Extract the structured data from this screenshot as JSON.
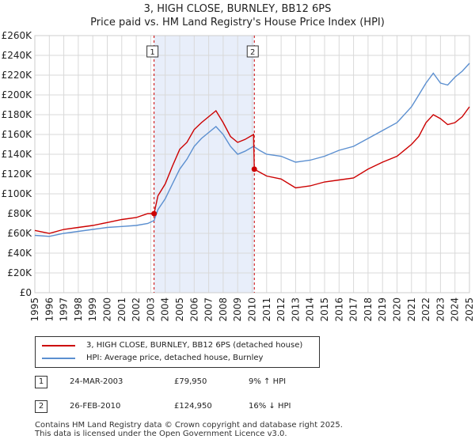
{
  "title_line1": "3, HIGH CLOSE, BURNLEY, BB12 6PS",
  "title_line2": "Price paid vs. HM Land Registry's House Price Index (HPI)",
  "colors": {
    "property": "#cc0000",
    "hpi": "#5b8fd0",
    "shade": "#e8eefa",
    "grid": "#d9d9d9"
  },
  "legend": {
    "property_label": "3, HIGH CLOSE, BURNLEY, BB12 6PS (detached house)",
    "hpi_label": "HPI: Average price, detached house, Burnley"
  },
  "sales": [
    {
      "id": "1",
      "date": "24-MAR-2003",
      "price": "£79,950",
      "hpi_delta": "9% ↑ HPI",
      "year": 2003.23,
      "value": 79950
    },
    {
      "id": "2",
      "date": "26-FEB-2010",
      "price": "£124,950",
      "hpi_delta": "16% ↓ HPI",
      "year": 2010.15,
      "value": 124950
    }
  ],
  "footer_line1": "Contains HM Land Registry data © Crown copyright and database right 2025.",
  "footer_line2": "This data is licensed under the Open Government Licence v3.0.",
  "chart_data": {
    "type": "line",
    "title": "Price paid vs. HM Land Registry's House Price Index (HPI)",
    "xlabel": "",
    "ylabel": "",
    "xlim": [
      1995,
      2025
    ],
    "ylim": [
      0,
      260000
    ],
    "x_ticks": [
      1995,
      1996,
      1997,
      1998,
      1999,
      2000,
      2001,
      2002,
      2003,
      2004,
      2005,
      2006,
      2007,
      2008,
      2009,
      2010,
      2011,
      2012,
      2013,
      2014,
      2015,
      2016,
      2017,
      2018,
      2019,
      2020,
      2021,
      2022,
      2023,
      2024,
      2025
    ],
    "y_ticks": [
      0,
      20000,
      40000,
      60000,
      80000,
      100000,
      120000,
      140000,
      160000,
      180000,
      200000,
      220000,
      240000,
      260000
    ],
    "y_tick_labels": [
      "£0",
      "£20K",
      "£40K",
      "£60K",
      "£80K",
      "£100K",
      "£120K",
      "£140K",
      "£160K",
      "£180K",
      "£200K",
      "£220K",
      "£240K",
      "£260K"
    ],
    "shaded_range": [
      2003.23,
      2010.15
    ],
    "series": [
      {
        "name": "3, HIGH CLOSE, BURNLEY, BB12 6PS (detached house)",
        "x": [
          1995,
          1996,
          1997,
          1998,
          1999,
          2000,
          2001,
          2002,
          2002.8,
          2003.23,
          2003.5,
          2004,
          2004.5,
          2005,
          2005.5,
          2006,
          2006.5,
          2007,
          2007.5,
          2008,
          2008.5,
          2009,
          2009.5,
          2010.1,
          2010.15,
          2010.5,
          2011,
          2012,
          2013,
          2014,
          2015,
          2016,
          2017,
          2018,
          2019,
          2020,
          2021,
          2021.5,
          2022,
          2022.5,
          2023,
          2023.5,
          2024,
          2024.5,
          2025
        ],
        "values": [
          63000,
          60000,
          64000,
          66000,
          68000,
          71000,
          74000,
          76000,
          80000,
          79950,
          98000,
          110000,
          128000,
          145000,
          152000,
          165000,
          172000,
          178000,
          184000,
          172000,
          158000,
          152000,
          155000,
          160000,
          124950,
          122000,
          118000,
          115000,
          106000,
          108000,
          112000,
          114000,
          116000,
          125000,
          132000,
          138000,
          150000,
          158000,
          172000,
          180000,
          176000,
          170000,
          172000,
          178000,
          188000
        ]
      },
      {
        "name": "HPI: Average price, detached house, Burnley",
        "x": [
          1995,
          1996,
          1997,
          1998,
          1999,
          2000,
          2001,
          2002,
          2002.8,
          2003.23,
          2003.5,
          2004,
          2004.5,
          2005,
          2005.5,
          2006,
          2006.5,
          2007,
          2007.5,
          2008,
          2008.5,
          2009,
          2009.5,
          2010.1,
          2010.5,
          2011,
          2012,
          2013,
          2014,
          2015,
          2016,
          2017,
          2018,
          2019,
          2020,
          2021,
          2021.5,
          2022,
          2022.5,
          2023,
          2023.5,
          2024,
          2024.5,
          2025
        ],
        "values": [
          58000,
          57000,
          60000,
          62000,
          64000,
          66000,
          67000,
          68000,
          70000,
          73000,
          84000,
          95000,
          110000,
          125000,
          135000,
          148000,
          156000,
          162000,
          168000,
          160000,
          148000,
          140000,
          143000,
          148000,
          144000,
          140000,
          138000,
          132000,
          134000,
          138000,
          144000,
          148000,
          156000,
          164000,
          172000,
          188000,
          200000,
          212000,
          222000,
          212000,
          210000,
          218000,
          224000,
          232000
        ]
      }
    ],
    "annotations": [
      "1",
      "2"
    ]
  }
}
